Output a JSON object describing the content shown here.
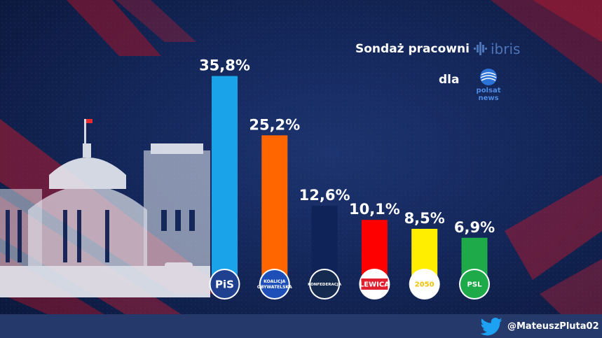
{
  "header": {
    "source_label": "Sondaż pracowni",
    "source_logo": "ibris",
    "for_label": "dla",
    "for_logo_line1": "polsat",
    "for_logo_line2": "news"
  },
  "footer": {
    "handle": "@MateuszPluta02",
    "icon": "twitter-icon"
  },
  "chart_data": {
    "type": "bar",
    "title": "",
    "xlabel": "",
    "ylabel": "",
    "ylim": [
      0,
      40
    ],
    "grid": false,
    "legend": "none",
    "categories": [
      "PiS",
      "Koalicja Obywatelska",
      "Konfederacja",
      "Lewica",
      "Polska 2050",
      "PSL"
    ],
    "values": [
      35.8,
      25.2,
      12.6,
      10.1,
      8.5,
      6.9
    ],
    "value_labels": [
      "35,8%",
      "25,2%",
      "12,6%",
      "10,1%",
      "8,5%",
      "6,9%"
    ],
    "colors": [
      "#1aa3e8",
      "#ff6600",
      "#0f2358",
      "#ff0000",
      "#ffee00",
      "#1faa4a"
    ],
    "logo_text": [
      [
        "PiS"
      ],
      [
        "KOALICJA",
        "OBYWATELSKA"
      ],
      [
        "KONFEDERACJA"
      ],
      [
        "LEWICA"
      ],
      [
        "2050"
      ],
      [
        "PSL"
      ]
    ]
  }
}
